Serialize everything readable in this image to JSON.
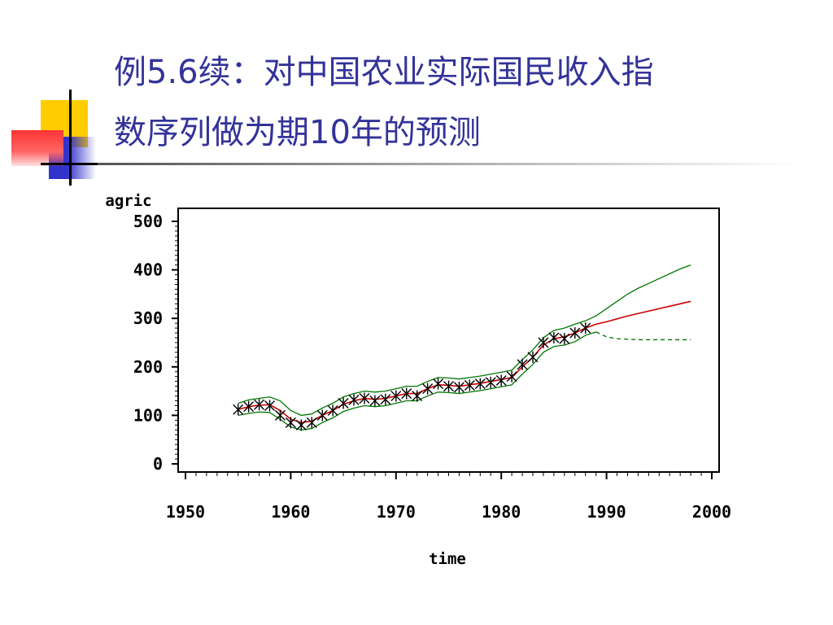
{
  "slide": {
    "title_line1": "例5.6续：对中国农业实际国民收入指",
    "title_line2": "数序列做为期10年的预测"
  },
  "colors": {
    "title": "#333399",
    "forecast": "#cc0000",
    "bounds": "#007700",
    "observed": "#000000",
    "deco_yellow": "#ffcc00",
    "deco_red": "#ff3333",
    "deco_blue": "#3333cc"
  },
  "chart_data": {
    "type": "line",
    "title": "",
    "xlabel": "time",
    "ylabel": "agric",
    "xlim": [
      1950,
      2000
    ],
    "ylim": [
      0,
      500
    ],
    "x_ticks": [
      1950,
      1960,
      1970,
      1980,
      1990,
      2000
    ],
    "y_ticks": [
      0,
      100,
      200,
      300,
      400,
      500
    ],
    "grid": false,
    "legend": "none",
    "observed": {
      "marker": "star",
      "x": [
        1955,
        1956,
        1957,
        1958,
        1959,
        1960,
        1961,
        1962,
        1963,
        1964,
        1965,
        1966,
        1967,
        1968,
        1969,
        1970,
        1971,
        1972,
        1973,
        1974,
        1975,
        1976,
        1977,
        1978,
        1979,
        1980,
        1981,
        1982,
        1983,
        1984,
        1985,
        1986,
        1987,
        1988
      ],
      "y": [
        112,
        118,
        122,
        120,
        100,
        85,
        80,
        85,
        100,
        110,
        125,
        132,
        135,
        130,
        133,
        140,
        145,
        140,
        155,
        165,
        160,
        158,
        162,
        165,
        168,
        172,
        180,
        205,
        220,
        250,
        260,
        258,
        270,
        280
      ]
    },
    "series": [
      {
        "role": "forecast",
        "style": "solid",
        "x": [
          1955,
          1956,
          1957,
          1958,
          1959,
          1960,
          1961,
          1962,
          1963,
          1964,
          1965,
          1966,
          1967,
          1968,
          1969,
          1970,
          1971,
          1972,
          1973,
          1974,
          1975,
          1976,
          1977,
          1978,
          1979,
          1980,
          1981,
          1982,
          1983,
          1984,
          1985,
          1986,
          1987,
          1988,
          1989,
          1990,
          1991,
          1992,
          1993,
          1994,
          1995,
          1996,
          1997,
          1998
        ],
        "y": [
          112,
          118,
          121,
          122,
          110,
          92,
          85,
          88,
          100,
          110,
          123,
          130,
          135,
          133,
          135,
          140,
          145,
          145,
          155,
          163,
          162,
          160,
          163,
          166,
          170,
          174,
          178,
          200,
          220,
          245,
          258,
          262,
          270,
          280,
          288,
          293,
          299,
          305,
          310,
          315,
          320,
          325,
          330,
          335
        ]
      },
      {
        "role": "upper_bound",
        "style": "solid",
        "x": [
          1955,
          1956,
          1957,
          1958,
          1959,
          1960,
          1961,
          1962,
          1963,
          1964,
          1965,
          1966,
          1967,
          1968,
          1969,
          1970,
          1971,
          1972,
          1973,
          1974,
          1975,
          1976,
          1977,
          1978,
          1979,
          1980,
          1981,
          1982,
          1983,
          1984,
          1985,
          1986,
          1987,
          1988,
          1989,
          1990,
          1991,
          1992,
          1993,
          1994,
          1995,
          1996,
          1997,
          1998
        ],
        "y": [
          125,
          132,
          135,
          138,
          130,
          110,
          100,
          103,
          115,
          125,
          138,
          145,
          150,
          148,
          150,
          155,
          160,
          160,
          170,
          178,
          177,
          175,
          178,
          181,
          185,
          189,
          193,
          215,
          235,
          260,
          275,
          280,
          288,
          295,
          305,
          320,
          335,
          350,
          362,
          372,
          382,
          392,
          402,
          410
        ]
      },
      {
        "role": "lower_bound_fit",
        "style": "solid",
        "x": [
          1955,
          1956,
          1957,
          1958,
          1959,
          1960,
          1961,
          1962,
          1963,
          1964,
          1965,
          1966,
          1967,
          1968,
          1969,
          1970,
          1971,
          1972,
          1973,
          1974,
          1975,
          1976,
          1977,
          1978,
          1979,
          1980,
          1981,
          1982,
          1983,
          1984,
          1985,
          1986,
          1987,
          1988,
          1989
        ],
        "y": [
          100,
          104,
          107,
          106,
          92,
          76,
          70,
          73,
          85,
          95,
          108,
          115,
          120,
          118,
          120,
          125,
          130,
          130,
          140,
          148,
          147,
          145,
          148,
          151,
          155,
          159,
          163,
          185,
          205,
          230,
          242,
          245,
          252,
          265,
          272
        ]
      },
      {
        "role": "lower_bound_forecast",
        "style": "dashed",
        "x": [
          1989,
          1990,
          1991,
          1992,
          1993,
          1994,
          1995,
          1996,
          1997,
          1998
        ],
        "y": [
          272,
          262,
          258,
          257,
          256,
          256,
          256,
          256,
          256,
          256
        ]
      }
    ]
  }
}
